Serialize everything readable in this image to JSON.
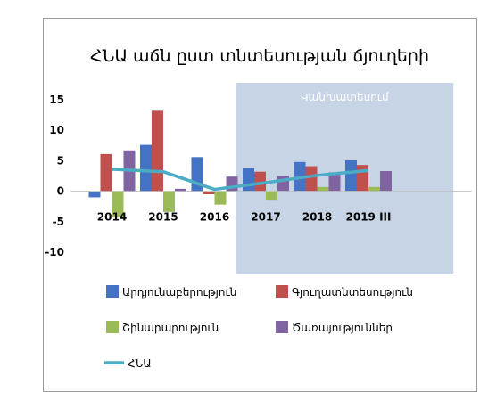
{
  "chart_data": {
    "type": "bar",
    "title": "ՀՆԱ աճն ըստ տնտեսության ճյուղերի",
    "categories": [
      "2014",
      "2015",
      "2016",
      "2017",
      "2018",
      "2019 III"
    ],
    "ylim": [
      -10,
      15
    ],
    "yticks": [
      15,
      10,
      5,
      0,
      -5,
      -10
    ],
    "forecast_label": "Կանխատեսում",
    "forecast_start_index": 3,
    "series": [
      {
        "name": "Արդյունաբերություն",
        "kind": "bar",
        "color": "#4472C4",
        "values": [
          -1,
          7.6,
          5.6,
          3.8,
          4.8,
          5.1
        ]
      },
      {
        "name": "Գյուղատնտեսություն",
        "kind": "bar",
        "color": "#C0504D",
        "values": [
          6.1,
          13.2,
          -0.5,
          3.2,
          4.1,
          4.3
        ]
      },
      {
        "name": "Շինարարություն",
        "kind": "bar",
        "color": "#9BBB59",
        "values": [
          -4.2,
          -3.4,
          -2.2,
          -1.4,
          0.7,
          0.7
        ]
      },
      {
        "name": "Ծառայություններ",
        "kind": "bar",
        "color": "#8064A2",
        "values": [
          6.7,
          0.4,
          2.4,
          2.5,
          3.1,
          3.3
        ]
      },
      {
        "name": "ՀՆԱ",
        "kind": "line",
        "color": "#4BACC6",
        "values": [
          3.6,
          3.2,
          0.3,
          1.4,
          2.6,
          3.4
        ]
      }
    ],
    "legend_position": "bottom",
    "grid": false
  }
}
